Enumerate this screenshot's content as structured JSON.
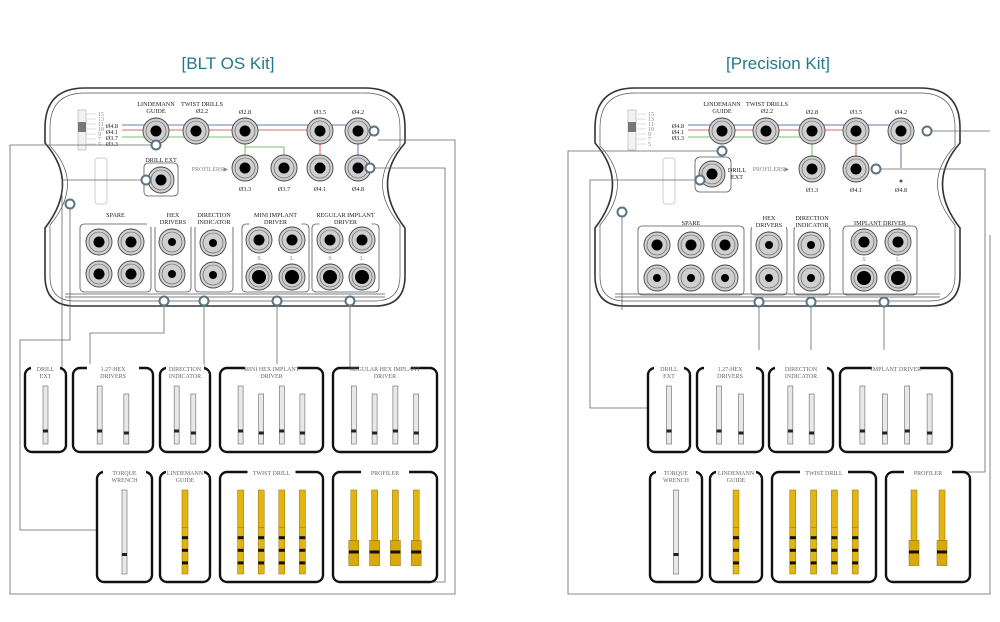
{
  "colors": {
    "title": "#1f7a8c",
    "blue": "#3a4fa0",
    "red": "#d63838",
    "green": "#5aa83a",
    "drill_gold": "#e3b512",
    "socket": "#cfcfcf"
  },
  "kits": [
    {
      "title": "[BLT OS Kit]",
      "depth_scale": [
        "15",
        "13",
        "11",
        "10",
        "9",
        "7",
        "5"
      ],
      "diameter_legend": [
        {
          "text": "Ø4.8",
          "color": "blue"
        },
        {
          "text": "Ø4.1",
          "color": "red"
        },
        {
          "text": "Ø3.7",
          "color": "green"
        },
        {
          "text": "Ø3.3",
          "color": "green"
        }
      ],
      "top_labels": {
        "lindemann": [
          "LINDEMANN",
          "GUIDE"
        ],
        "twist": [
          "TWIST DRILLS",
          "Ø2.2"
        ],
        "d28": "Ø2.8",
        "d35": "Ø3.5",
        "d42": "Ø4.2",
        "d33": "Ø3.3",
        "d37": "Ø3.7",
        "d41": "Ø4.1",
        "d48": "Ø4.8",
        "profilers": "PROFILERS▶",
        "drill_ext": "DRILL EXT"
      },
      "groups": [
        [
          "SPARE"
        ],
        [
          "HEX",
          "DRIVERS"
        ],
        [
          "DIRECTION",
          "INDICATOR"
        ],
        [
          "MINI IMPLANT",
          "DRIVER"
        ],
        [
          "REGULAR IMPLANT",
          "DRIVER"
        ]
      ],
      "size_marks": [
        "S",
        "L",
        "S",
        "L"
      ],
      "products": [
        [
          "DRILL",
          "EXT"
        ],
        [
          "1.27-HEX",
          "DRIVERS"
        ],
        [
          "DIRECTION",
          "INDICATOR"
        ],
        [
          "MINI HEX IMPLANT",
          "DRIVER"
        ],
        [
          "REGULAR HEX IMPLANT",
          "DRIVER"
        ],
        [
          "TORQUE",
          "WRENCH"
        ],
        [
          "LINDEMANN",
          "GUIDE"
        ],
        [
          "TWIST DRILL"
        ],
        [
          "PROFILER"
        ]
      ]
    },
    {
      "title": "[Precision Kit]",
      "depth_scale": [
        "15",
        "13",
        "11",
        "10",
        "9",
        "7",
        "5"
      ],
      "diameter_legend": [
        {
          "text": "Ø4.8",
          "color": "blue"
        },
        {
          "text": "Ø4.1",
          "color": "red"
        },
        {
          "text": "Ø3.3",
          "color": "green"
        }
      ],
      "top_labels": {
        "lindemann": [
          "LINDEMANN",
          "GUIDE"
        ],
        "twist": [
          "TWIST DRILLS",
          "Ø2.2"
        ],
        "d28": "Ø2.8",
        "d35": "Ø3.5",
        "d42": "Ø4.2",
        "d33": "Ø3.3",
        "d41": "Ø4.1",
        "d48": "Ø4.8",
        "profilers": "PROFILERS▶",
        "drill_ext": [
          "DRILL",
          "EXT"
        ]
      },
      "groups": [
        [
          "SPARE"
        ],
        [
          "HEX",
          "DRIVERS"
        ],
        [
          "DIRECTION",
          "INDICATOR"
        ],
        [
          "IMPLANT DRIVER"
        ]
      ],
      "size_marks": [
        "S",
        "L"
      ],
      "products": [
        [
          "DRILL",
          "EXT"
        ],
        [
          "1.27-HEX",
          "DRIVERS"
        ],
        [
          "DIRECTION",
          "INDICATOR"
        ],
        [
          "IMPLANT DRIVER"
        ],
        [
          "TORQUE",
          "WRENCH"
        ],
        [
          "LINDEMANN",
          "GUIDE"
        ],
        [
          "TWIST DRILL"
        ],
        [
          "PROFILER"
        ]
      ]
    }
  ]
}
